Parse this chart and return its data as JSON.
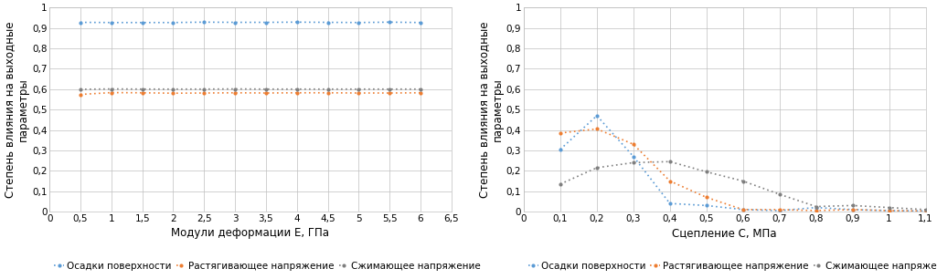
{
  "chart1": {
    "xlabel": "Модули деформации Е, ГПа",
    "ylabel": "Степень влияния на выходные\nпараметры",
    "xlim": [
      0,
      6.5
    ],
    "ylim": [
      0,
      1.0
    ],
    "xticks": [
      0,
      0.5,
      1.0,
      1.5,
      2.0,
      2.5,
      3.0,
      3.5,
      4.0,
      4.5,
      5.0,
      5.5,
      6.0,
      6.5
    ],
    "yticks": [
      0,
      0.1,
      0.2,
      0.3,
      0.4,
      0.5,
      0.6,
      0.7,
      0.8,
      0.9,
      1.0
    ],
    "series": [
      {
        "label": "Осадки поверхности",
        "color": "#5B9BD5",
        "x": [
          0.5,
          1.0,
          1.5,
          2.0,
          2.5,
          3.0,
          3.5,
          4.0,
          4.5,
          5.0,
          5.5,
          6.0
        ],
        "y": [
          0.927,
          0.926,
          0.926,
          0.926,
          0.928,
          0.927,
          0.927,
          0.928,
          0.927,
          0.926,
          0.928,
          0.926
        ]
      },
      {
        "label": "Растягивающее напряжение",
        "color": "#ED7D31",
        "x": [
          0.5,
          1.0,
          1.5,
          2.0,
          2.5,
          3.0,
          3.5,
          4.0,
          4.5,
          5.0,
          5.5,
          6.0
        ],
        "y": [
          0.574,
          0.583,
          0.582,
          0.58,
          0.581,
          0.582,
          0.581,
          0.582,
          0.582,
          0.581,
          0.581,
          0.582
        ]
      },
      {
        "label": "Сжимающее напряжение",
        "color": "#7F7F7F",
        "x": [
          0.5,
          1.0,
          1.5,
          2.0,
          2.5,
          3.0,
          3.5,
          4.0,
          4.5,
          5.0,
          5.5,
          6.0
        ],
        "y": [
          0.599,
          0.601,
          0.6,
          0.6,
          0.6,
          0.601,
          0.6,
          0.6,
          0.6,
          0.6,
          0.6,
          0.6
        ]
      }
    ]
  },
  "chart2": {
    "xlabel": "Сцепление С, МПа",
    "ylabel": "Степень влияния на выходные\nпараметры",
    "xlim": [
      0,
      1.1
    ],
    "ylim": [
      0,
      1.0
    ],
    "xticks": [
      0,
      0.1,
      0.2,
      0.3,
      0.4,
      0.5,
      0.6,
      0.7,
      0.8,
      0.9,
      1.0,
      1.1
    ],
    "yticks": [
      0,
      0.1,
      0.2,
      0.3,
      0.4,
      0.5,
      0.6,
      0.7,
      0.8,
      0.9,
      1.0
    ],
    "series": [
      {
        "label": "Осадки поверхности",
        "color": "#5B9BD5",
        "x": [
          0.1,
          0.2,
          0.3,
          0.4,
          0.5,
          0.6,
          0.7,
          0.8,
          0.9,
          1.0,
          1.1
        ],
        "y": [
          0.305,
          0.47,
          0.27,
          0.04,
          0.03,
          0.01,
          0.005,
          0.02,
          0.01,
          0.005,
          0.003
        ]
      },
      {
        "label": "Растягивающее напряжение",
        "color": "#ED7D31",
        "x": [
          0.1,
          0.2,
          0.3,
          0.4,
          0.5,
          0.6,
          0.7,
          0.8,
          0.9,
          1.0,
          1.1
        ],
        "y": [
          0.385,
          0.405,
          0.33,
          0.15,
          0.07,
          0.01,
          0.01,
          0.005,
          0.01,
          0.005,
          0.003
        ]
      },
      {
        "label": "Сжимающее напряжение",
        "color": "#7F7F7F",
        "x": [
          0.1,
          0.2,
          0.3,
          0.4,
          0.5,
          0.6,
          0.7,
          0.8,
          0.9,
          1.0,
          1.1
        ],
        "y": [
          0.135,
          0.215,
          0.24,
          0.245,
          0.195,
          0.15,
          0.085,
          0.025,
          0.03,
          0.02,
          0.01
        ]
      }
    ]
  },
  "legend_labels": [
    "Осадки поверхности",
    "Растягивающее напряжение",
    "Сжимающее напряжение"
  ],
  "legend_colors": [
    "#5B9BD5",
    "#ED7D31",
    "#7F7F7F"
  ],
  "background_color": "#ffffff",
  "grid_color": "#BFBFBF",
  "tick_fontsize": 7.5,
  "label_fontsize": 8.5,
  "legend_fontsize": 7.5
}
